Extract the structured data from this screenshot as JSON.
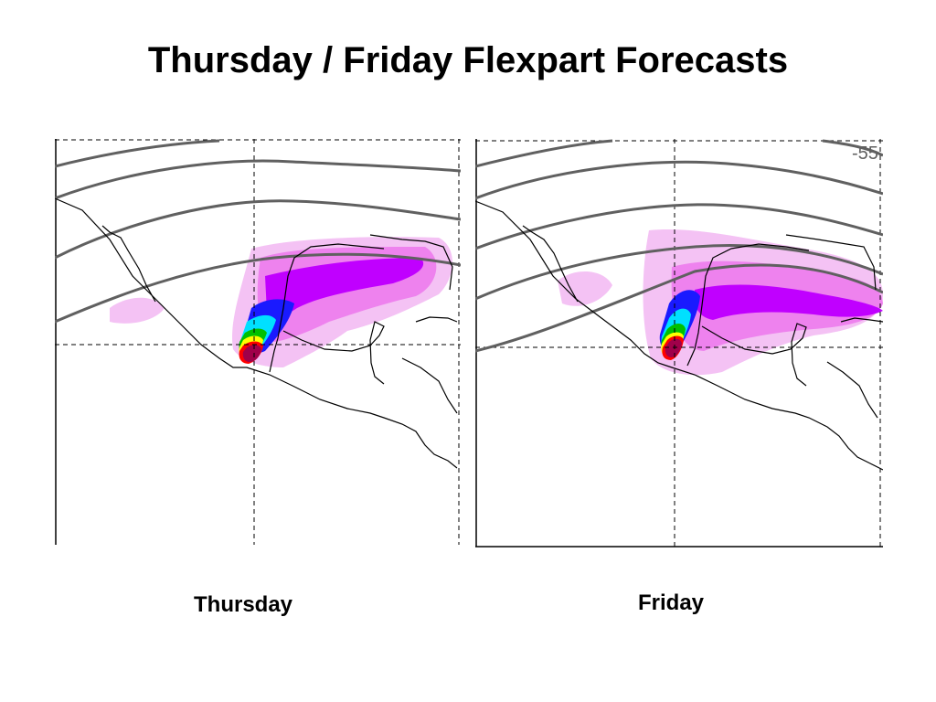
{
  "slide": {
    "title": "Thursday / Friday Flexpart Forecasts"
  },
  "panels": [
    {
      "caption": "Thursday",
      "contour_label": ""
    },
    {
      "caption": "Friday",
      "contour_label": "-55"
    }
  ],
  "colors": {
    "contour": "#606060",
    "coast": "#000000",
    "plume_low": "#f4c2f4",
    "plume_mid": "#ee82ee",
    "plume_high": "#c000ff",
    "plume_blue": "#1a1aff",
    "plume_cyan": "#00e0ff",
    "plume_green": "#00c000",
    "plume_yellow": "#ffff00",
    "plume_red": "#ff0000",
    "plume_max": "#a0004a"
  }
}
